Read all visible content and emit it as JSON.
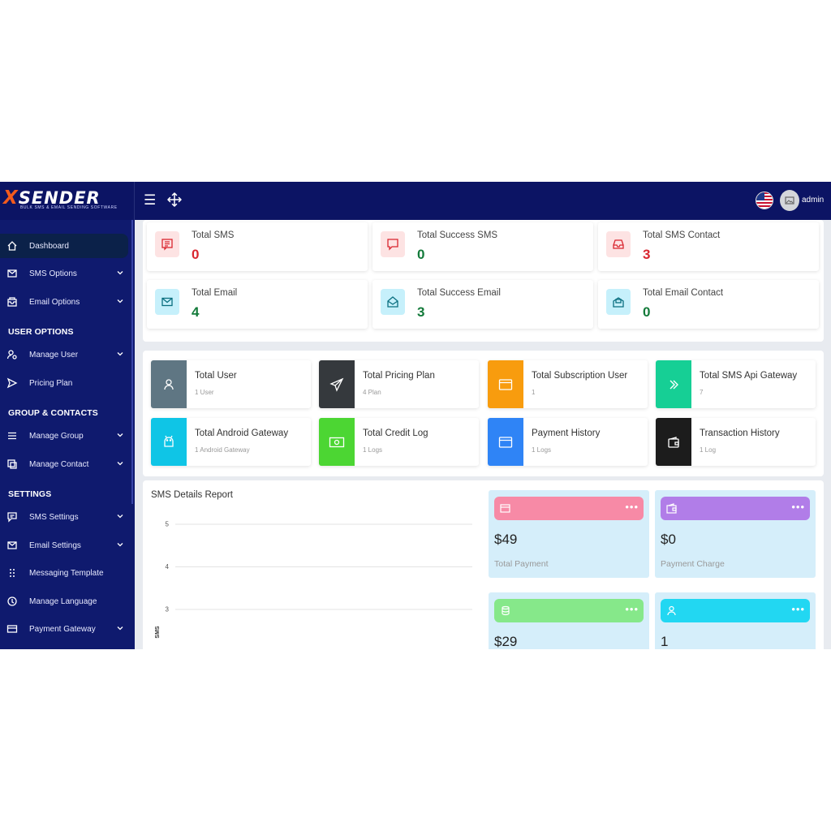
{
  "header": {
    "brand": "SENDER",
    "brand_x": "X",
    "tagline": "BULK SMS & EMAIL SENDING SOFTWARE",
    "username": "admin"
  },
  "sidebar": {
    "items": [
      {
        "label": "Dashboard",
        "icon": "home-icon"
      },
      {
        "label": "SMS Options",
        "icon": "mail-icon"
      },
      {
        "label": "Email Options",
        "icon": "mailbox-icon"
      },
      {
        "label": "Manage User",
        "icon": "user-gear-icon"
      },
      {
        "label": "Pricing Plan",
        "icon": "send-icon"
      },
      {
        "label": "Manage Group",
        "icon": "list-icon"
      },
      {
        "label": "Manage Contact",
        "icon": "contact-icon"
      },
      {
        "label": "SMS Settings",
        "icon": "chat-icon"
      },
      {
        "label": "Email Settings",
        "icon": "mail-icon"
      },
      {
        "label": "Messaging Template",
        "icon": "grid-dots-icon"
      },
      {
        "label": "Manage Language",
        "icon": "language-icon"
      },
      {
        "label": "Payment Gateway",
        "icon": "card-icon"
      }
    ],
    "sections": {
      "user_options": "USER OPTIONS",
      "group_contacts": "GROUP & CONTACTS",
      "settings": "SETTINGS"
    }
  },
  "stats_top": [
    {
      "title": "Total SMS",
      "value": "0",
      "value_color": "#d9262f",
      "box_color": "#fde3e3",
      "icon_color": "#d9262f"
    },
    {
      "title": "Total Success SMS",
      "value": "0",
      "value_color": "#137a3a",
      "box_color": "#fde3e3",
      "icon_color": "#d9262f"
    },
    {
      "title": "Total SMS Contact",
      "value": "3",
      "value_color": "#d9262f",
      "box_color": "#fde3e3",
      "icon_color": "#d9262f"
    },
    {
      "title": "Total Email",
      "value": "4",
      "value_color": "#137a3a",
      "box_color": "#c6f0fb",
      "icon_color": "#0a8a9a"
    },
    {
      "title": "Total Success Email",
      "value": "3",
      "value_color": "#137a3a",
      "box_color": "#c6f0fb",
      "icon_color": "#0a8a9a"
    },
    {
      "title": "Total Email Contact",
      "value": "0",
      "value_color": "#137a3a",
      "box_color": "#c6f0fb",
      "icon_color": "#0a8a9a"
    }
  ],
  "stats_mid": [
    {
      "title": "Total User",
      "sub": "1 User",
      "color": "#5f7683"
    },
    {
      "title": "Total Pricing Plan",
      "sub": "4 Plan",
      "color": "#35393d"
    },
    {
      "title": "Total Subscription User",
      "sub": "1",
      "color": "#f89c0e"
    },
    {
      "title": "Total SMS Api Gateway",
      "sub": "7",
      "color": "#16cf95"
    },
    {
      "title": "Total Android Gateway",
      "sub": "1 Android Gateway",
      "color": "#0fc5e6"
    },
    {
      "title": "Total Credit Log",
      "sub": "1 Logs",
      "color": "#4cd633"
    },
    {
      "title": "Payment History",
      "sub": "1 Logs",
      "color": "#2f84f6"
    },
    {
      "title": "Transaction History",
      "sub": "1 Log",
      "color": "#1c1c1c"
    }
  ],
  "chart_data": {
    "type": "line",
    "title": "SMS Details Report",
    "ylabel": "SMS",
    "xlabel": "",
    "y_ticks": [
      5,
      4,
      3
    ],
    "grid": true,
    "series": []
  },
  "pay_cards": [
    {
      "amount": "$49",
      "label": "Total Payment",
      "bar_color": "#f78aa6",
      "icon": "card-icon"
    },
    {
      "amount": "$0",
      "label": "Payment Charge",
      "bar_color": "#b17de8",
      "icon": "wallet-icon"
    },
    {
      "amount": "$29",
      "label": "",
      "bar_color": "#86e88a",
      "icon": "coins-icon"
    },
    {
      "amount": "1",
      "label": "",
      "bar_color": "#22d7f2",
      "icon": "user-icon"
    }
  ],
  "pay_dots": "•••"
}
